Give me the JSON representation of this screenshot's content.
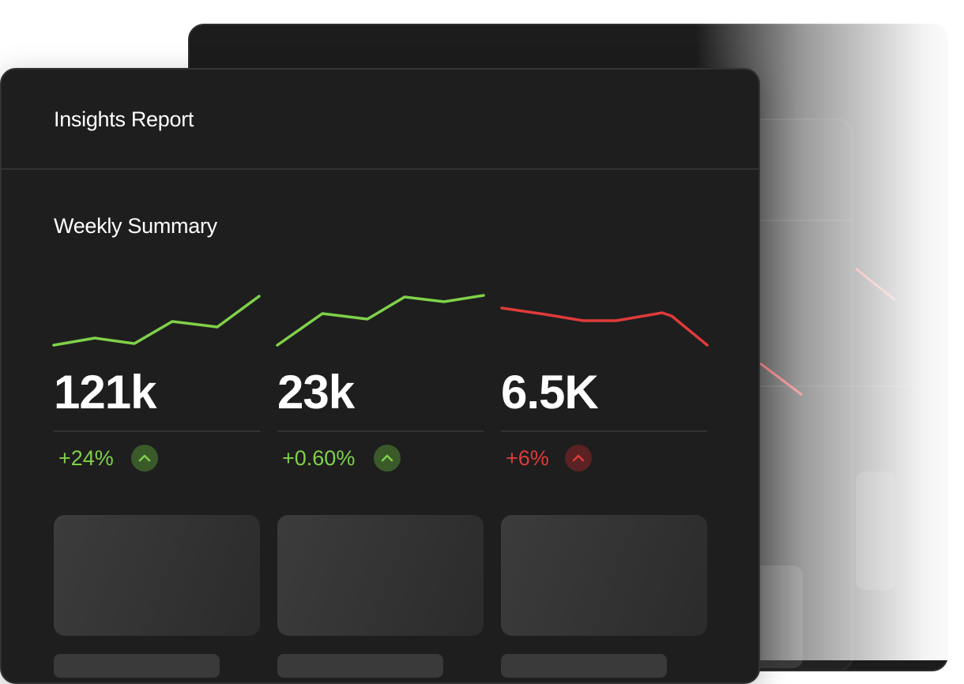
{
  "header": {
    "title": "Insights Report"
  },
  "summary": {
    "title": "Weekly Summary",
    "cards": [
      {
        "value": "121k",
        "change": "+24%"
      },
      {
        "value": "23k",
        "change": "+0.60%"
      },
      {
        "value": "6.5K",
        "change": "+6%"
      }
    ]
  }
}
